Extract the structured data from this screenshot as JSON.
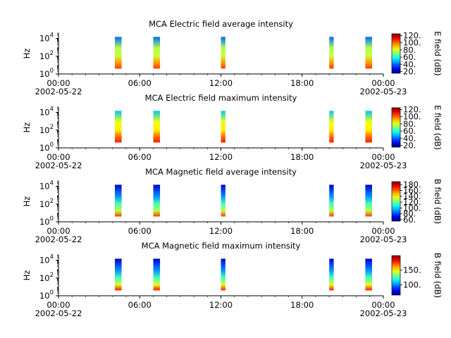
{
  "figure": {
    "background": "#ffffff"
  },
  "chart_data": [
    {
      "type": "heatmap",
      "title": "MCA  Electric field average intensity",
      "ylabel": "Hz",
      "yscale": "log",
      "ylim": [
        1,
        40000
      ],
      "yticks": [
        {
          "base": "10",
          "exp": "0"
        },
        {
          "base": "10",
          "exp": "2"
        },
        {
          "base": "10",
          "exp": "4"
        }
      ],
      "xlim": [
        "2002-05-22 00:00",
        "2002-05-23 00:00"
      ],
      "xticks": [
        {
          "time": "00:00",
          "date": "2002-05-22"
        },
        {
          "time": "06:00",
          "date": ""
        },
        {
          "time": "12:00",
          "date": ""
        },
        {
          "time": "18:00",
          "date": ""
        },
        {
          "time": "00:00",
          "date": "2002-05-23"
        }
      ],
      "colorbar": {
        "label": "E field (dB)",
        "ticks": [
          "20.",
          "40.",
          "60.",
          "80.",
          "100.",
          "120."
        ],
        "range": [
          15,
          125
        ]
      },
      "passes": [
        {
          "start": "04:10",
          "end": "04:40"
        },
        {
          "start": "07:00",
          "end": "07:30"
        },
        {
          "start": "12:00",
          "end": "12:20"
        },
        {
          "start": "20:00",
          "end": "20:20"
        },
        {
          "start": "22:40",
          "end": "23:10"
        }
      ],
      "intensity_profile": {
        "top": 40,
        "upper": 75,
        "mid": 78,
        "low": 95,
        "bottom": 105
      },
      "grid": false
    },
    {
      "type": "heatmap",
      "title": "MCA  Electric field maximum intensity",
      "ylabel": "Hz",
      "yscale": "log",
      "ylim": [
        1,
        40000
      ],
      "yticks": [
        {
          "base": "10",
          "exp": "0"
        },
        {
          "base": "10",
          "exp": "2"
        },
        {
          "base": "10",
          "exp": "4"
        }
      ],
      "xlim": [
        "2002-05-22 00:00",
        "2002-05-23 00:00"
      ],
      "xticks": [
        {
          "time": "00:00",
          "date": "2002-05-22"
        },
        {
          "time": "06:00",
          "date": ""
        },
        {
          "time": "12:00",
          "date": ""
        },
        {
          "time": "18:00",
          "date": ""
        },
        {
          "time": "00:00",
          "date": "2002-05-23"
        }
      ],
      "colorbar": {
        "label": "E field (dB)",
        "ticks": [
          "20.",
          "40.",
          "60.",
          "80.",
          "100.",
          "120."
        ],
        "range": [
          15,
          125
        ]
      },
      "passes": [
        {
          "start": "04:10",
          "end": "04:40"
        },
        {
          "start": "07:00",
          "end": "07:30"
        },
        {
          "start": "12:00",
          "end": "12:20"
        },
        {
          "start": "20:00",
          "end": "20:20"
        },
        {
          "start": "22:40",
          "end": "23:10"
        }
      ],
      "intensity_profile": {
        "top": 50,
        "upper": 82,
        "mid": 85,
        "low": 100,
        "bottom": 108
      },
      "grid": false
    },
    {
      "type": "heatmap",
      "title": "MCA  Magnetic field average intensity",
      "ylabel": "Hz",
      "yscale": "log",
      "ylim": [
        1,
        40000
      ],
      "yticks": [
        {
          "base": "10",
          "exp": "0"
        },
        {
          "base": "10",
          "exp": "2"
        },
        {
          "base": "10",
          "exp": "4"
        }
      ],
      "xlim": [
        "2002-05-22 00:00",
        "2002-05-23 00:00"
      ],
      "xticks": [
        {
          "time": "00:00",
          "date": "2002-05-22"
        },
        {
          "time": "06:00",
          "date": ""
        },
        {
          "time": "12:00",
          "date": ""
        },
        {
          "time": "18:00",
          "date": ""
        },
        {
          "time": "00:00",
          "date": "2002-05-23"
        }
      ],
      "colorbar": {
        "label": "B field (dB)",
        "ticks": [
          "60.",
          "80.",
          "100.",
          "120.",
          "140.",
          "160.",
          "180."
        ],
        "range": [
          55,
          190
        ]
      },
      "passes": [
        {
          "start": "04:10",
          "end": "04:40"
        },
        {
          "start": "07:00",
          "end": "07:30"
        },
        {
          "start": "12:00",
          "end": "12:20"
        },
        {
          "start": "20:00",
          "end": "20:20"
        },
        {
          "start": "22:40",
          "end": "23:10"
        }
      ],
      "intensity_profile": {
        "top": 65,
        "upper": 90,
        "mid": 115,
        "low": 130,
        "bottom": 165
      },
      "grid": false
    },
    {
      "type": "heatmap",
      "title": "MCA  Magnetic field maximum intensity",
      "ylabel": "Hz",
      "yscale": "log",
      "ylim": [
        1,
        40000
      ],
      "yticks": [
        {
          "base": "10",
          "exp": "0"
        },
        {
          "base": "10",
          "exp": "2"
        },
        {
          "base": "10",
          "exp": "4"
        }
      ],
      "xlim": [
        "2002-05-22 00:00",
        "2002-05-23 00:00"
      ],
      "xticks": [
        {
          "time": "00:00",
          "date": "2002-05-22"
        },
        {
          "time": "06:00",
          "date": ""
        },
        {
          "time": "12:00",
          "date": ""
        },
        {
          "time": "18:00",
          "date": ""
        },
        {
          "time": "00:00",
          "date": "2002-05-23"
        }
      ],
      "colorbar": {
        "label": "B field (dB)",
        "ticks": [
          "100.",
          "150."
        ],
        "range": [
          65,
          200
        ]
      },
      "passes": [
        {
          "start": "04:10",
          "end": "04:40"
        },
        {
          "start": "07:00",
          "end": "07:30"
        },
        {
          "start": "12:00",
          "end": "12:20"
        },
        {
          "start": "20:00",
          "end": "20:20"
        },
        {
          "start": "22:40",
          "end": "23:10"
        }
      ],
      "intensity_profile": {
        "top": 75,
        "upper": 100,
        "mid": 125,
        "low": 145,
        "bottom": 180
      },
      "grid": false
    }
  ]
}
